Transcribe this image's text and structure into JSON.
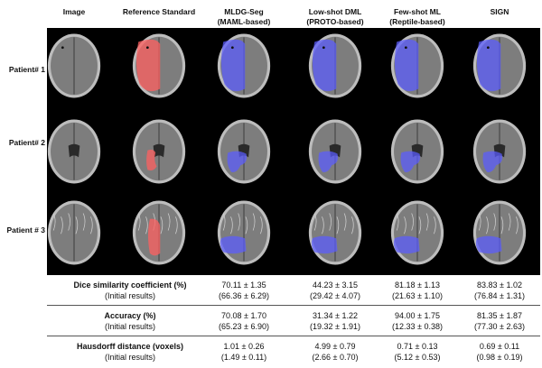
{
  "columns": [
    {
      "line1": "Image",
      "line2": ""
    },
    {
      "line1": "Reference Standard",
      "line2": ""
    },
    {
      "line1": "MLDG-Seg",
      "line2": "(MAML-based)"
    },
    {
      "line1": "Low-shot DML",
      "line2": "(PROTO-based)"
    },
    {
      "line1": "Few-shot ML",
      "line2": "(Reptile-based)"
    },
    {
      "line1": "SIGN",
      "line2": ""
    }
  ],
  "patients": [
    "Patient# 1",
    "Patient# 2",
    "Patient # 3"
  ],
  "overlay_colors": {
    "reference": "#ff6060",
    "prediction": "#5a5cff"
  },
  "metrics": [
    {
      "label": "Dice similarity coefficient (%)",
      "sub_label": "(Initial results)",
      "values": [
        "70.11 ± 1.35",
        "44.23 ± 3.15",
        "81.18 ± 1.13",
        "83.83 ± 1.02"
      ],
      "initial": [
        "(66.36 ± 6.29)",
        "(29.42 ± 4.07)",
        "(21.63 ± 1.10)",
        "(76.84 ± 1.31)"
      ]
    },
    {
      "label": "Accuracy (%)",
      "sub_label": "(Initial results)",
      "values": [
        "70.08 ± 1.70",
        "31.34 ± 1.22",
        "94.00 ± 1.75",
        "81.35 ± 1.87"
      ],
      "initial": [
        "(65.23 ± 6.90)",
        "(19.32 ± 1.91)",
        "(12.33 ± 0.38)",
        "(77.30 ± 2.63)"
      ]
    },
    {
      "label": "Hausdorff distance (voxels)",
      "sub_label": "(Initial results)",
      "values": [
        "1.01 ± 0.26",
        "4.99 ± 0.79",
        "0.71 ± 0.13",
        "0.69 ± 0.11"
      ],
      "initial": [
        "(1.49 ± 0.11)",
        "(2.66 ± 0.70)",
        "(5.12 ± 0.53)",
        "(0.98 ± 0.19)"
      ]
    }
  ]
}
